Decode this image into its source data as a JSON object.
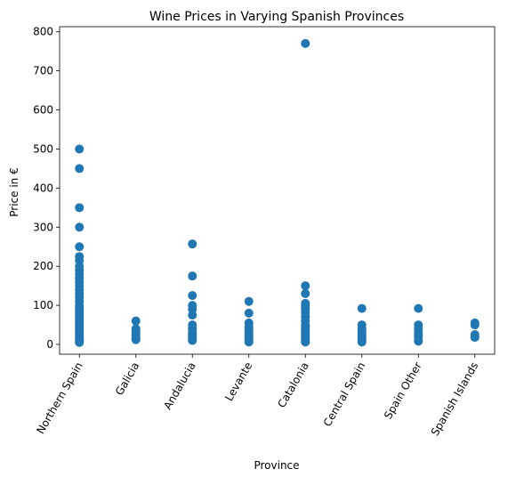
{
  "chart_data": {
    "type": "scatter",
    "title": "Wine Prices in Varying Spanish Provinces",
    "xlabel": "Province",
    "ylabel": "Price in €",
    "color": "#1f77b4",
    "categories": [
      "Northern Spain",
      "Galicia",
      "Andalucia",
      "Levante",
      "Catalonia",
      "Central Spain",
      "Spain Other",
      "Spanish Islands"
    ],
    "values": [
      [
        500,
        450,
        350,
        300,
        250,
        225,
        215,
        200,
        190,
        180,
        170,
        160,
        150,
        140,
        130,
        120,
        110,
        100,
        95,
        90,
        85,
        80,
        75,
        70,
        65,
        60,
        55,
        50,
        45,
        40,
        35,
        30,
        25,
        20,
        15,
        10,
        8,
        5
      ],
      [
        60,
        40,
        35,
        30,
        25,
        20,
        15,
        12
      ],
      [
        257,
        175,
        125,
        100,
        90,
        75,
        50,
        40,
        30,
        25,
        20,
        15,
        10
      ],
      [
        110,
        80,
        55,
        45,
        40,
        35,
        30,
        25,
        20,
        15,
        10,
        6
      ],
      [
        770,
        150,
        130,
        105,
        100,
        95,
        90,
        80,
        70,
        60,
        50,
        45,
        40,
        35,
        30,
        25,
        20,
        15,
        10,
        6
      ],
      [
        92,
        50,
        40,
        35,
        30,
        25,
        20,
        15,
        10,
        6
      ],
      [
        92,
        50,
        40,
        30,
        25,
        20,
        10,
        8
      ],
      [
        55,
        50,
        25,
        20,
        18
      ]
    ],
    "ylim": [
      -25,
      813
    ],
    "yticks": [
      0,
      100,
      200,
      300,
      400,
      500,
      600,
      700,
      800
    ]
  }
}
